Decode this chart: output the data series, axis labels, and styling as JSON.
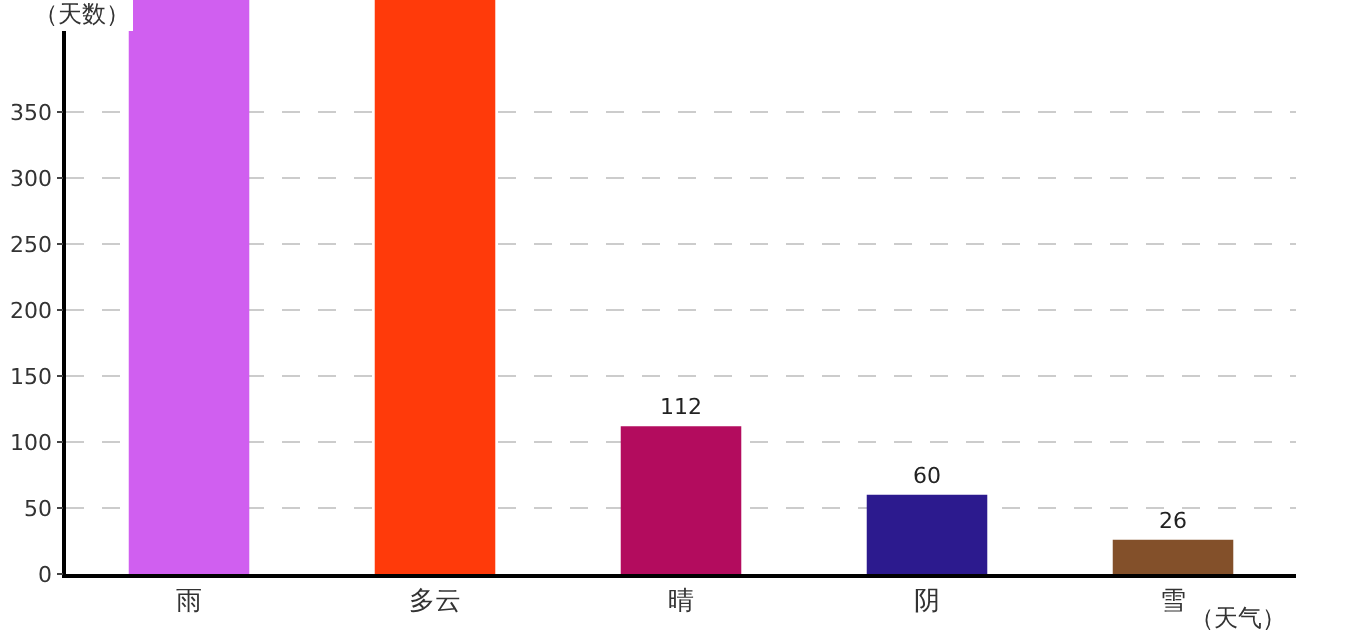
{
  "chart_data": {
    "type": "bar",
    "xlabel": "（天气）",
    "ylabel": "（天数）",
    "categories": [
      "雨",
      "多云",
      "晴",
      "阴",
      "雪"
    ],
    "values": [
      435,
      435,
      112,
      60,
      26
    ],
    "value_labels": [
      null,
      null,
      "112",
      "60",
      "26"
    ],
    "colors": [
      "#d05ff0",
      "#ff3a0a",
      "#b30c5e",
      "#2c1a8e",
      "#83502a"
    ],
    "ylim": [
      0,
      435
    ],
    "yticks": [
      0,
      50,
      100,
      150,
      200,
      250,
      300,
      350
    ],
    "grid": "y",
    "legend": false
  }
}
